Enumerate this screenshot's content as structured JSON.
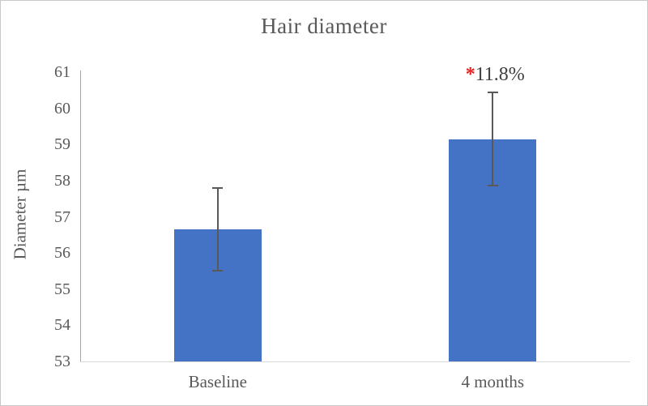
{
  "chart_data": {
    "type": "bar",
    "title": "Hair diameter",
    "xlabel": "",
    "ylabel": "Diameter µm",
    "categories": [
      "Baseline",
      "4 months"
    ],
    "values": [
      56.65,
      59.15
    ],
    "errors": [
      1.15,
      1.28
    ],
    "ylim": [
      53,
      61
    ],
    "ytick_step": 1,
    "grid": false,
    "legend": false,
    "bar_color": "#4472C4",
    "axis_text_color": "#595959",
    "error_bar_color": "#595959",
    "annotation": {
      "marker": "*",
      "marker_color": "#e02020",
      "text": "11.8%",
      "text_color": "#3f3f3f",
      "category": "4 months"
    }
  }
}
